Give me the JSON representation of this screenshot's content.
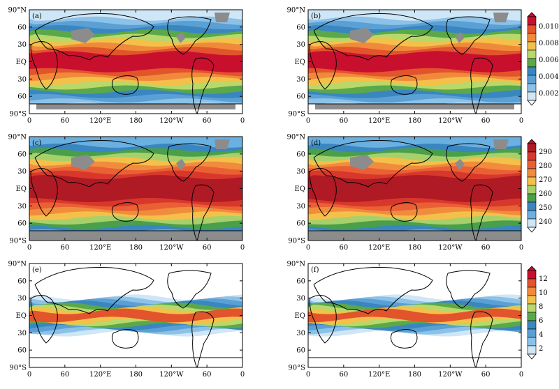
{
  "figure": {
    "lat_labels": [
      "90°N",
      "60",
      "30",
      "EQ",
      "30",
      "60",
      "90°S"
    ],
    "lon_labels": [
      "0",
      "60",
      "120°E",
      "180",
      "120°W",
      "60",
      "0"
    ],
    "panels": [
      {
        "label": "(a)",
        "field": "q"
      },
      {
        "label": "(b)",
        "field": "q"
      },
      {
        "label": "(c)",
        "field": "t"
      },
      {
        "label": "(d)",
        "field": "t"
      },
      {
        "label": "(e)",
        "field": "p"
      },
      {
        "label": "(f)",
        "field": "p"
      }
    ],
    "colorbars": [
      {
        "ticks": [
          "0.010",
          "0.008",
          "0.006",
          "0.004",
          "0.002"
        ],
        "colors": [
          "#c8102e",
          "#e2542c",
          "#f08a3a",
          "#f4c04a",
          "#b8d86a",
          "#5aa84a",
          "#3a86c0",
          "#5aa0d4",
          "#8cc2e8",
          "#cfe6f6"
        ]
      },
      {
        "ticks": [
          "290",
          "280",
          "270",
          "260",
          "250",
          "240"
        ],
        "colors": [
          "#b01a24",
          "#d8382c",
          "#ea6034",
          "#f08c3c",
          "#f4c04a",
          "#a8d06a",
          "#4aa04a",
          "#3a86c0",
          "#6ab0e0",
          "#cfe6f6"
        ]
      },
      {
        "ticks": [
          "12",
          "10",
          "8",
          "6",
          "4",
          "2"
        ],
        "colors": [
          "#c8102e",
          "#e2542c",
          "#f08a3a",
          "#f4c04a",
          "#b8d86a",
          "#5aa84a",
          "#3a86c0",
          "#5aa0d4",
          "#8cc2e8",
          "#cfe6f6"
        ]
      }
    ],
    "palettes": {
      "q": [
        "#cfe6f6",
        "#8cc2e8",
        "#5aa0d4",
        "#3a86c0",
        "#5aa84a",
        "#b8d86a",
        "#f4c04a",
        "#f08a3a",
        "#e2542c",
        "#c8102e"
      ],
      "t": [
        "#6ab0e0",
        "#3a86c0",
        "#4aa04a",
        "#a8d06a",
        "#f4c04a",
        "#f08c3c",
        "#ea6034",
        "#d8382c",
        "#b01a24"
      ],
      "p": [
        "#ffffff",
        "#cfe6f6",
        "#8cc2e8",
        "#5aa0d4",
        "#3a86c0",
        "#5aa84a",
        "#b8d86a",
        "#f4c04a",
        "#e2542c"
      ]
    },
    "missing_color": "#8c8c8c",
    "coast_color": "#000000"
  }
}
